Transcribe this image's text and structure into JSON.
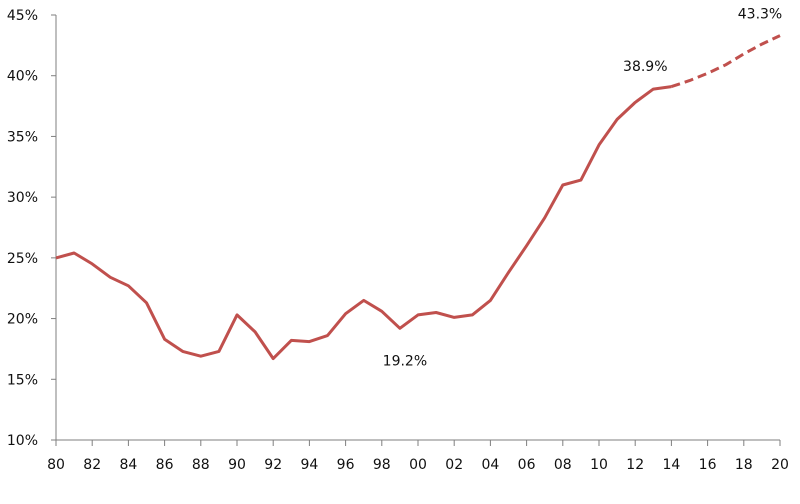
{
  "chart_data": {
    "type": "line",
    "title": "",
    "xlabel": "",
    "ylabel": "",
    "x_ticks": [
      "80",
      "82",
      "84",
      "86",
      "88",
      "90",
      "92",
      "94",
      "96",
      "98",
      "00",
      "02",
      "04",
      "06",
      "08",
      "10",
      "12",
      "14",
      "16",
      "18",
      "20"
    ],
    "y_ticks": [
      "10%",
      "15%",
      "20%",
      "25%",
      "30%",
      "35%",
      "40%",
      "45%"
    ],
    "xlim": [
      1980,
      2020
    ],
    "ylim": [
      10,
      45
    ],
    "grid": false,
    "series": [
      {
        "style": "solid",
        "color": "#c0504d",
        "x": [
          1980,
          1981,
          1982,
          1983,
          1984,
          1985,
          1986,
          1987,
          1988,
          1989,
          1990,
          1991,
          1992,
          1993,
          1994,
          1995,
          1996,
          1997,
          1998,
          1999,
          2000,
          2001,
          2002,
          2003,
          2004,
          2005,
          2006,
          2007,
          2008,
          2009,
          2010,
          2011,
          2012,
          2013,
          2014
        ],
        "y": [
          25.0,
          25.4,
          24.5,
          23.4,
          22.7,
          21.3,
          18.3,
          17.3,
          16.9,
          17.3,
          20.3,
          18.9,
          16.7,
          18.2,
          18.1,
          18.6,
          20.4,
          21.5,
          20.6,
          19.2,
          20.3,
          20.5,
          20.1,
          20.3,
          21.5,
          23.8,
          26.0,
          28.3,
          31.0,
          31.4,
          34.3,
          36.4,
          37.8,
          38.9,
          39.1
        ]
      },
      {
        "style": "dashed",
        "color": "#c0504d",
        "x": [
          2014,
          2015,
          2016,
          2017,
          2018,
          2019,
          2020
        ],
        "y": [
          39.1,
          39.6,
          40.2,
          40.9,
          41.8,
          42.6,
          43.3
        ]
      }
    ],
    "annotations": [
      {
        "text": "19.2%",
        "x": 1999,
        "y": 19.2
      },
      {
        "text": "38.9%",
        "x": 2013,
        "y": 38.9
      },
      {
        "text": "43.3%",
        "x": 2020,
        "y": 43.3
      }
    ]
  }
}
